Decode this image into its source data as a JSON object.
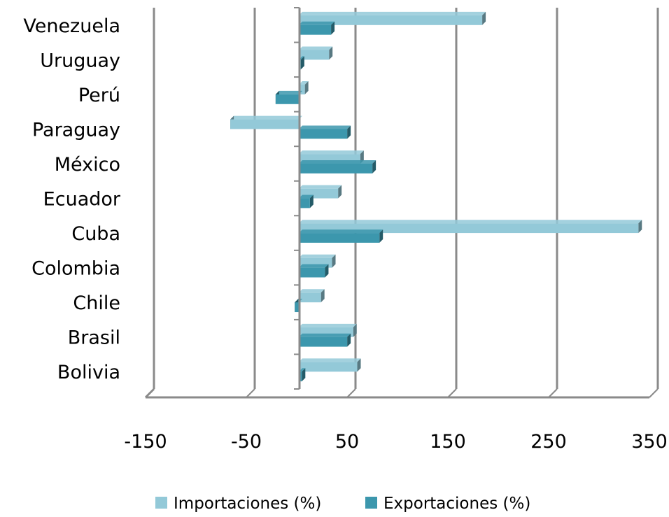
{
  "chart_data": {
    "type": "bar",
    "orientation": "horizontal",
    "three_d": true,
    "categories": [
      "Venezuela",
      "Uruguay",
      "Perú",
      "Paraguay",
      "México",
      "Ecuador",
      "Cuba",
      "Colombia",
      "Chile",
      "Brasil",
      "Bolivia"
    ],
    "series": [
      {
        "name": "Importaciones (%)",
        "color": "#93c9d8",
        "values": [
          182,
          30,
          6,
          -68,
          61,
          39,
          337,
          33,
          22,
          54,
          58
        ]
      },
      {
        "name": "Exportaciones (%)",
        "color": "#3c97ad",
        "values": [
          32,
          2,
          -23,
          48,
          73,
          11,
          80,
          26,
          -4,
          48,
          3
        ]
      }
    ],
    "xlim": [
      -150,
      350
    ],
    "xticks": [
      "-150",
      "-50",
      "50",
      "150",
      "250",
      "350"
    ],
    "gridlines": true,
    "legend_position": "bottom"
  }
}
